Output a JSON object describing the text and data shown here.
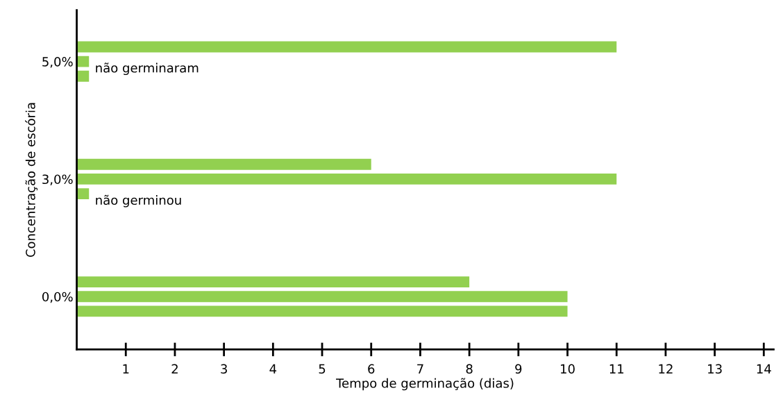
{
  "chart_data": {
    "type": "bar",
    "orientation": "horizontal",
    "xlabel": "Tempo de germinação (dias)",
    "ylabel": "Concentração de escória",
    "categories": [
      null,
      "5,0%",
      null,
      null,
      null,
      null,
      null,
      null,
      null,
      "3,0%",
      null,
      null,
      null,
      null,
      null,
      null,
      null,
      "0,0%",
      null
    ],
    "values": [
      11,
      0.25,
      0.25,
      null,
      null,
      null,
      null,
      null,
      6,
      11,
      0.25,
      null,
      null,
      null,
      null,
      null,
      8,
      10,
      10
    ],
    "value_labels": [
      null,
      "não germinaram",
      null,
      null,
      null,
      null,
      null,
      null,
      null,
      null,
      "não germinou",
      null,
      null,
      null,
      null,
      null,
      null,
      null,
      null
    ],
    "color": "#92d050",
    "xlim": [
      0,
      14.2
    ],
    "xticks": [
      1,
      2,
      3,
      4,
      5,
      6,
      7,
      8,
      9,
      10,
      11,
      12,
      13,
      14
    ],
    "grid": false,
    "legend": false
  }
}
